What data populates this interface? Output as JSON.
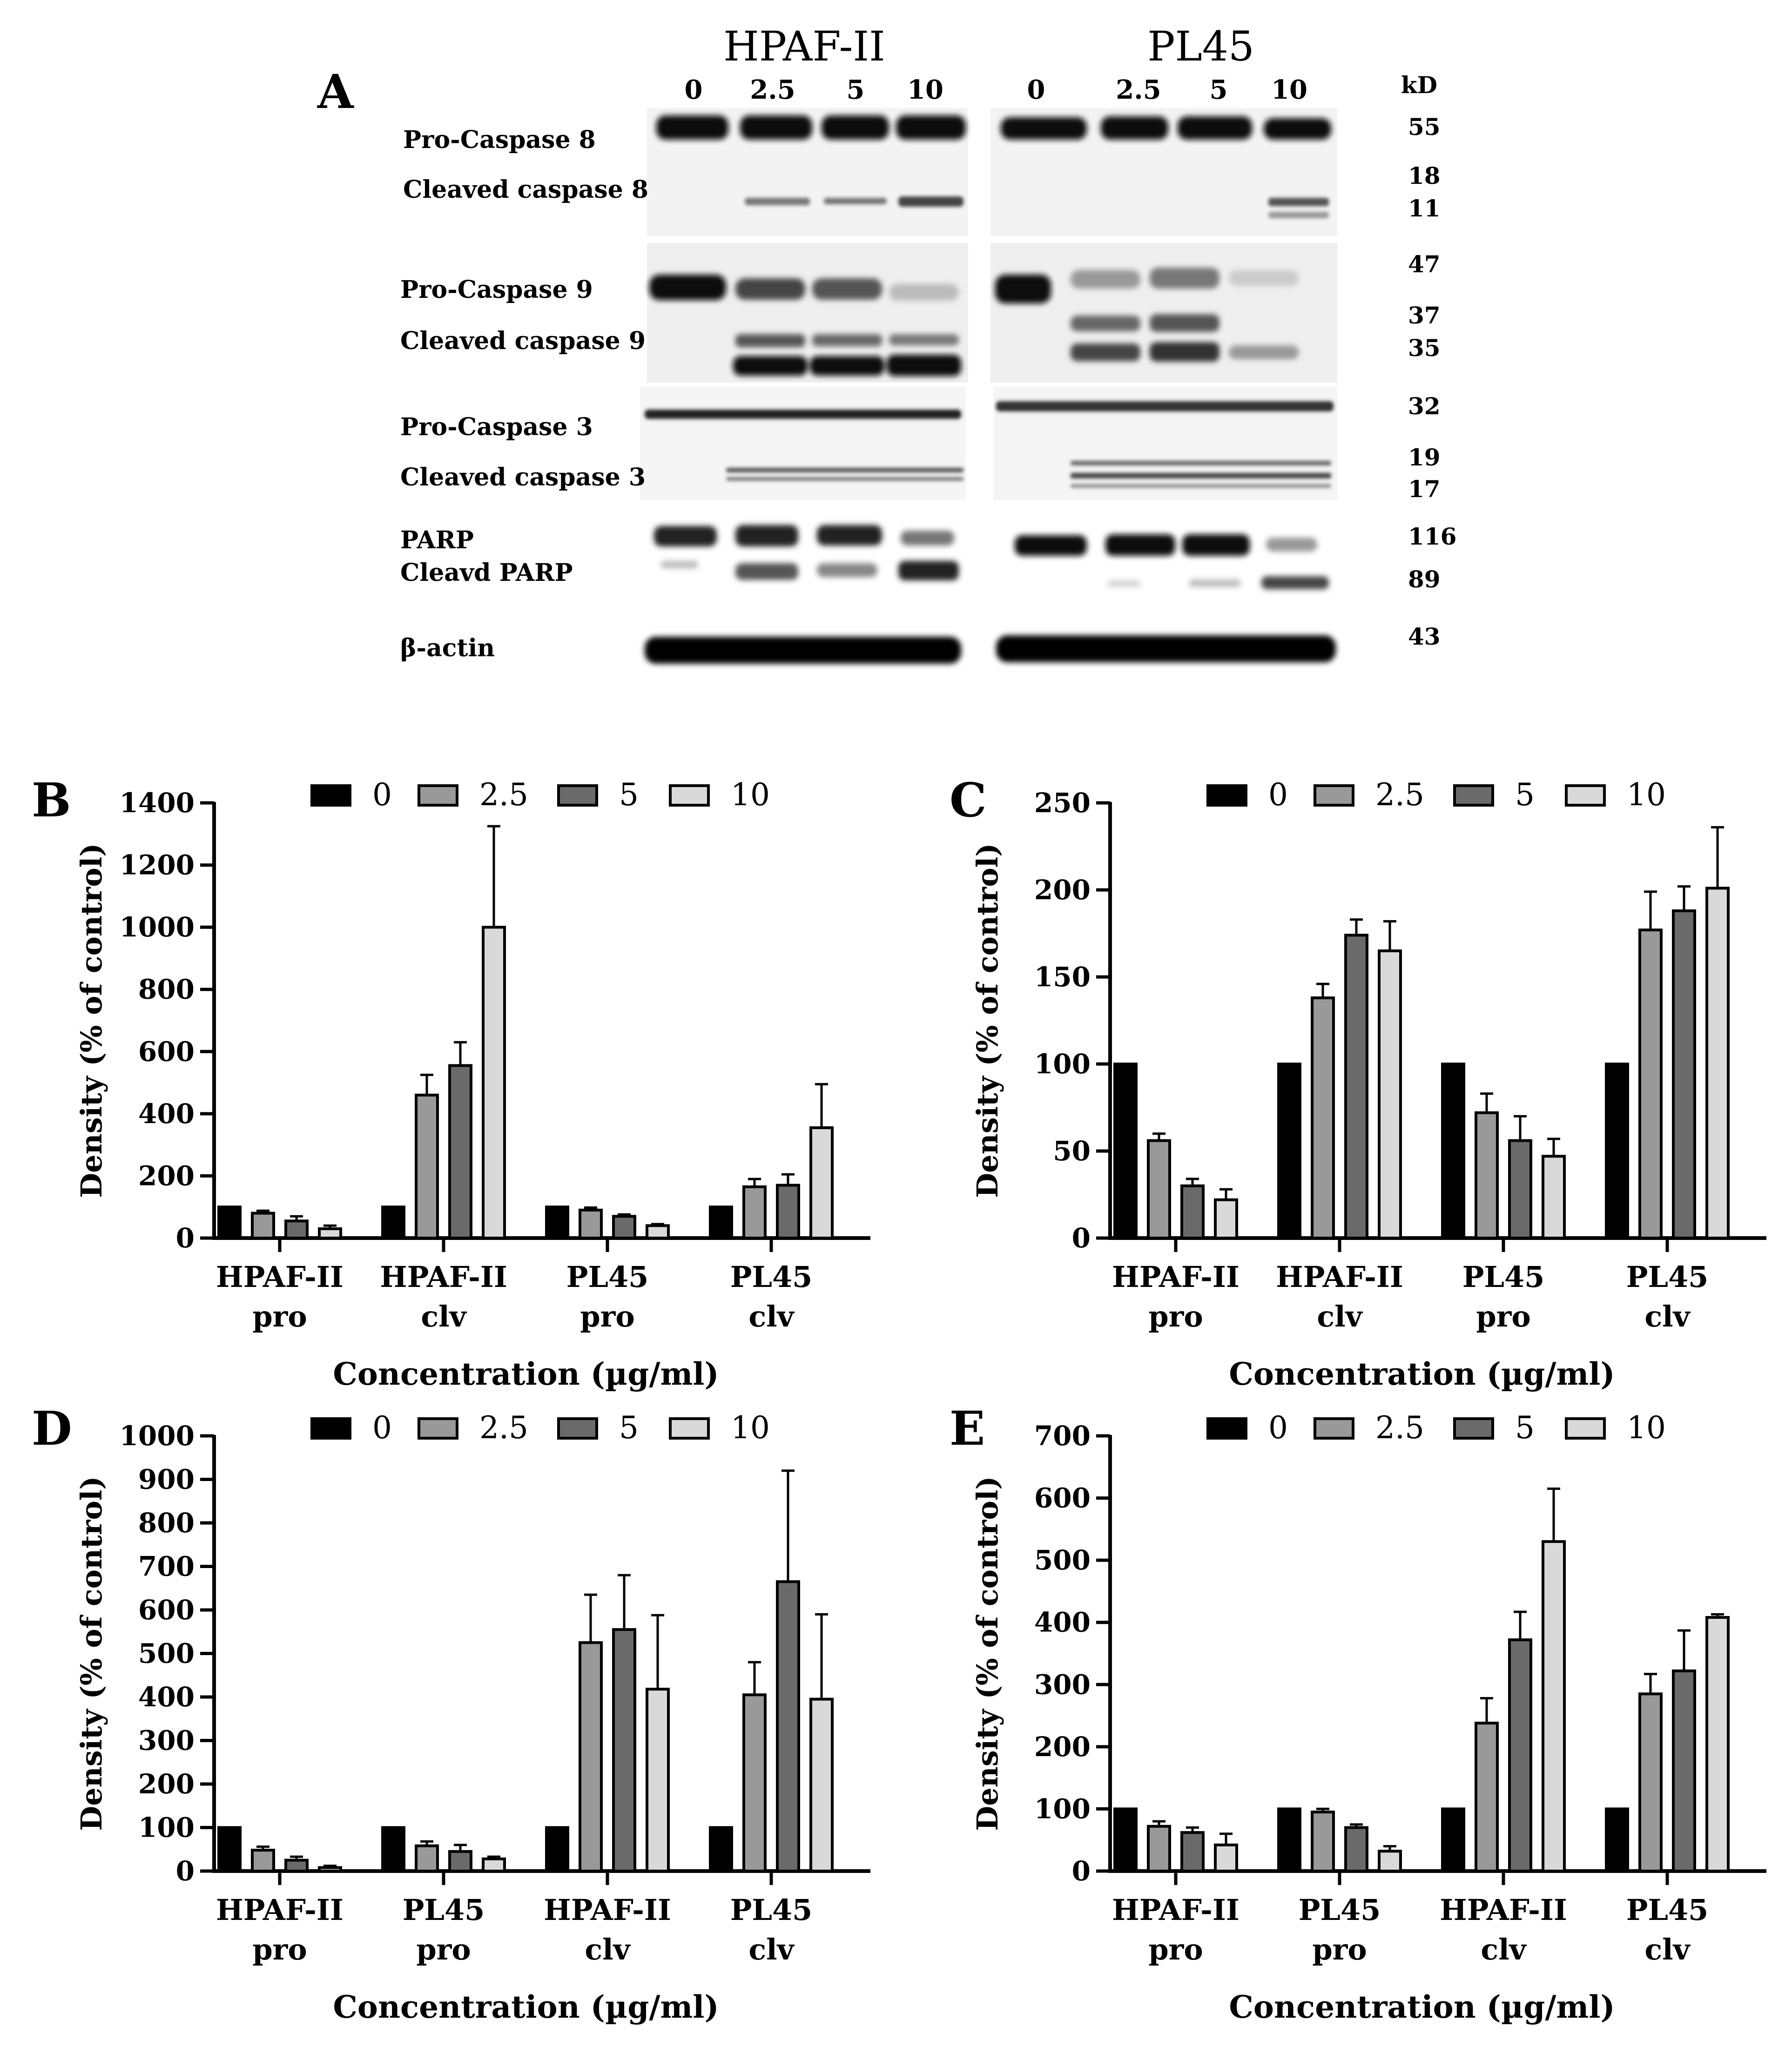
{
  "panel_a": {
    "letter": "A",
    "cell_lines": [
      "HPAF-II",
      "PL45"
    ],
    "concentrations": [
      "0",
      "2.5",
      "5",
      "10"
    ],
    "kd_header": "kD",
    "rows": [
      {
        "label": "Pro-Caspase 8",
        "kd": "55"
      },
      {
        "label": "Cleaved caspase 8",
        "kd": "18"
      },
      {
        "label": "",
        "kd": "11"
      },
      {
        "label": "Pro-Caspase 9",
        "kd": "47"
      },
      {
        "label": "Cleaved caspase 9",
        "kd": "37"
      },
      {
        "label": "",
        "kd": "35"
      },
      {
        "label": "Pro-Caspase 3",
        "kd": "32"
      },
      {
        "label": "Cleaved caspase 3",
        "kd": "19"
      },
      {
        "label": "",
        "kd": "17"
      },
      {
        "label": "PARP",
        "kd": "116"
      },
      {
        "label": "Cleavd PARP",
        "kd": "89"
      },
      {
        "label": "β-actin",
        "kd": "43"
      }
    ]
  },
  "colors": {
    "series": [
      "#000000",
      "#999999",
      "#6a6a6a",
      "#d9d9d9"
    ],
    "axis": "#000000"
  },
  "chart_data": [
    {
      "panel": "B",
      "type": "bar",
      "ylabel": "Density (% of control)",
      "xlabel": "Concentration (µg/ml)",
      "ylim": [
        0,
        1400
      ],
      "yticks": [
        0,
        200,
        400,
        600,
        800,
        1000,
        1200,
        1400
      ],
      "categories": [
        [
          "HPAF-II",
          "pro"
        ],
        [
          "HPAF-II",
          "clv"
        ],
        [
          "PL45",
          "pro"
        ],
        [
          "PL45",
          "clv"
        ]
      ],
      "series": [
        {
          "name": "0",
          "values": [
            100,
            100,
            100,
            100
          ],
          "errors": [
            0,
            0,
            0,
            0
          ]
        },
        {
          "name": "2.5",
          "values": [
            80,
            460,
            90,
            165
          ],
          "errors": [
            8,
            65,
            8,
            25
          ]
        },
        {
          "name": "5",
          "values": [
            55,
            555,
            70,
            170
          ],
          "errors": [
            15,
            75,
            6,
            35
          ]
        },
        {
          "name": "10",
          "values": [
            30,
            1000,
            40,
            355
          ],
          "errors": [
            10,
            325,
            5,
            140
          ]
        }
      ],
      "legend": "top"
    },
    {
      "panel": "C",
      "type": "bar",
      "ylabel": "Density (% of control)",
      "xlabel": "Concentration (µg/ml)",
      "ylim": [
        0,
        250
      ],
      "yticks": [
        0,
        50,
        100,
        150,
        200,
        250
      ],
      "categories": [
        [
          "HPAF-II",
          "pro"
        ],
        [
          "HPAF-II",
          "clv"
        ],
        [
          "PL45",
          "pro"
        ],
        [
          "PL45",
          "clv"
        ]
      ],
      "series": [
        {
          "name": "0",
          "values": [
            100,
            100,
            100,
            100
          ],
          "errors": [
            0,
            0,
            0,
            0
          ]
        },
        {
          "name": "2.5",
          "values": [
            56,
            138,
            72,
            177
          ],
          "errors": [
            4,
            8,
            11,
            22
          ]
        },
        {
          "name": "5",
          "values": [
            30,
            174,
            56,
            188
          ],
          "errors": [
            4,
            9,
            14,
            14
          ]
        },
        {
          "name": "10",
          "values": [
            22,
            165,
            47,
            201
          ],
          "errors": [
            6,
            17,
            10,
            35
          ]
        }
      ],
      "legend": "top"
    },
    {
      "panel": "D",
      "type": "bar",
      "ylabel": "Density (% of control)",
      "xlabel": "Concentration (µg/ml)",
      "ylim": [
        0,
        1000
      ],
      "yticks": [
        0,
        100,
        200,
        300,
        400,
        500,
        600,
        700,
        800,
        900,
        1000
      ],
      "categories": [
        [
          "HPAF-II",
          "pro"
        ],
        [
          "PL45",
          "pro"
        ],
        [
          "HPAF-II",
          "clv"
        ],
        [
          "PL45",
          "clv"
        ]
      ],
      "series": [
        {
          "name": "0",
          "values": [
            100,
            100,
            100,
            100
          ],
          "errors": [
            0,
            0,
            0,
            0
          ]
        },
        {
          "name": "2.5",
          "values": [
            48,
            58,
            525,
            405
          ],
          "errors": [
            8,
            10,
            110,
            75
          ]
        },
        {
          "name": "5",
          "values": [
            25,
            45,
            555,
            665
          ],
          "errors": [
            8,
            15,
            125,
            255
          ]
        },
        {
          "name": "10",
          "values": [
            8,
            28,
            418,
            395
          ],
          "errors": [
            4,
            5,
            170,
            195
          ]
        }
      ],
      "legend": "top"
    },
    {
      "panel": "E",
      "type": "bar",
      "ylabel": "Density (% of control)",
      "xlabel": "Concentration (µg/ml)",
      "ylim": [
        0,
        700
      ],
      "yticks": [
        0,
        100,
        200,
        300,
        400,
        500,
        600,
        700
      ],
      "categories": [
        [
          "HPAF-II",
          "pro"
        ],
        [
          "PL45",
          "pro"
        ],
        [
          "HPAF-II",
          "clv"
        ],
        [
          "PL45",
          "clv"
        ]
      ],
      "series": [
        {
          "name": "0",
          "values": [
            100,
            100,
            100,
            100
          ],
          "errors": [
            0,
            0,
            0,
            0
          ]
        },
        {
          "name": "2.5",
          "values": [
            72,
            95,
            238,
            285
          ],
          "errors": [
            8,
            5,
            40,
            32
          ]
        },
        {
          "name": "5",
          "values": [
            62,
            70,
            372,
            322
          ],
          "errors": [
            8,
            5,
            45,
            65
          ]
        },
        {
          "name": "10",
          "values": [
            42,
            32,
            530,
            408
          ],
          "errors": [
            18,
            8,
            85,
            5
          ]
        }
      ],
      "legend": "top"
    }
  ]
}
